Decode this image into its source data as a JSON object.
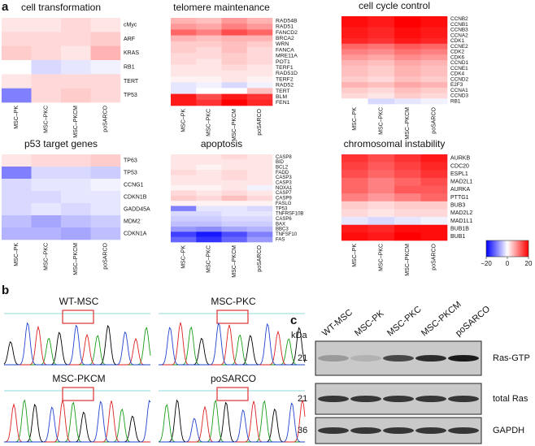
{
  "panel_a": {
    "label": "a",
    "colorbar": {
      "lim": [
        -20,
        20
      ],
      "ticks": [
        {
          "value": -20,
          "label": "−20"
        },
        0,
        20
      ]
    },
    "heatmaps": [
      {
        "title": "cell transformation",
        "columns": [
          "MSC–PK",
          "MSC–PKC",
          "MSC–PKCM",
          "poSARCO"
        ],
        "rows": [
          "cMyc",
          "ARF",
          "KRAS",
          "RB1",
          "TERT",
          "TP53"
        ],
        "values": [
          [
            2,
            2,
            3,
            2
          ],
          [
            3,
            3,
            3,
            4
          ],
          [
            4,
            3,
            2,
            6
          ],
          [
            0,
            -3,
            -2,
            -1
          ],
          [
            2,
            3,
            3,
            3
          ],
          [
            -10,
            3,
            4,
            3
          ]
        ]
      },
      {
        "title": "telomere maintenance",
        "columns": [
          "MSC–PK",
          "MSC–PKC",
          "MSC–PKCM",
          "poSARCO"
        ],
        "rows": [
          "RAD54B",
          "RAD51",
          "FANCD2",
          "BRCA2",
          "WRN",
          "FANCA",
          "MRE11A",
          "POT1",
          "TERF1",
          "RAD51D",
          "TERF2",
          "RAD52",
          "TERT",
          "BLM",
          "FEN1"
        ],
        "values": [
          [
            6,
            5,
            8,
            6
          ],
          [
            8,
            7,
            10,
            8
          ],
          [
            12,
            10,
            14,
            12
          ],
          [
            6,
            5,
            6,
            6
          ],
          [
            4,
            4,
            5,
            4
          ],
          [
            4,
            3,
            5,
            3
          ],
          [
            3,
            3,
            4,
            3
          ],
          [
            3,
            2,
            4,
            3
          ],
          [
            2,
            2,
            3,
            2
          ],
          [
            2,
            2,
            2,
            2
          ],
          [
            1,
            1,
            2,
            1
          ],
          [
            -2,
            -1,
            -3,
            -1
          ],
          [
            -2,
            0,
            0,
            5
          ],
          [
            18,
            14,
            18,
            16
          ],
          [
            18,
            16,
            20,
            17
          ]
        ]
      },
      {
        "title": "cell cycle control",
        "columns": [
          "MSC–PK",
          "MSC–PKC",
          "MSC–PKCM",
          "poSARCO"
        ],
        "rows": [
          "CCNB2",
          "CCNB1",
          "CCNB3",
          "CCNA2",
          "CDK1",
          "CCNE2",
          "CDK2",
          "CDK6",
          "CCND1",
          "CCNE1",
          "CDK4",
          "CCND2",
          "E2F3",
          "CCNA1",
          "CCND3",
          "RB1"
        ],
        "values": [
          [
            19,
            18,
            20,
            19
          ],
          [
            19,
            18,
            20,
            19
          ],
          [
            18,
            17,
            19,
            18
          ],
          [
            18,
            17,
            19,
            18
          ],
          [
            17,
            16,
            18,
            17
          ],
          [
            12,
            11,
            13,
            12
          ],
          [
            10,
            9,
            11,
            10
          ],
          [
            8,
            7,
            9,
            8
          ],
          [
            6,
            5,
            7,
            6
          ],
          [
            5,
            4,
            6,
            5
          ],
          [
            5,
            4,
            6,
            5
          ],
          [
            4,
            3,
            5,
            4
          ],
          [
            6,
            5,
            7,
            6
          ],
          [
            4,
            3,
            5,
            4
          ],
          [
            3,
            2,
            4,
            3
          ],
          [
            0,
            -3,
            -2,
            -1
          ]
        ]
      },
      {
        "title": "p53 target genes",
        "columns": [
          "MSC–PK",
          "MSC–PKC",
          "MSC–PKCM",
          "poSARCO"
        ],
        "rows": [
          "TP63",
          "TP53",
          "CCNG1",
          "CDKN1B",
          "GADD45A",
          "MDM2",
          "CDKN1A"
        ],
        "values": [
          [
            2,
            3,
            3,
            4
          ],
          [
            -10,
            -3,
            -3,
            -4
          ],
          [
            -3,
            -2,
            -2,
            -1
          ],
          [
            -3,
            -3,
            -2,
            -2
          ],
          [
            -3,
            -2,
            -3,
            -2
          ],
          [
            -5,
            -7,
            -5,
            -4
          ],
          [
            -6,
            -6,
            -7,
            -5
          ]
        ]
      },
      {
        "title": "apoptosis",
        "columns": [
          "MSC–PK",
          "MSC–PKC",
          "MSC–PKCM",
          "poSARCO"
        ],
        "rows": [
          "CASP8",
          "BID",
          "BCL2",
          "FADD",
          "CASP3",
          "CASP3",
          "NOXA1",
          "CASP7",
          "CASP9",
          "FASLG",
          "TP53",
          "TNFRSF10B",
          "CASP6",
          "BAX",
          "BBC3",
          "TNFSF10",
          "FAS"
        ],
        "values": [
          [
            2,
            2,
            3,
            2
          ],
          [
            2,
            2,
            2,
            2
          ],
          [
            2,
            1,
            2,
            2
          ],
          [
            3,
            2,
            3,
            2
          ],
          [
            2,
            2,
            3,
            2
          ],
          [
            2,
            2,
            2,
            2
          ],
          [
            1,
            1,
            2,
            -1
          ],
          [
            3,
            2,
            3,
            2
          ],
          [
            4,
            3,
            5,
            3
          ],
          [
            1,
            1,
            1,
            1
          ],
          [
            -10,
            -2,
            -2,
            -3
          ],
          [
            -3,
            -3,
            -2,
            -2
          ],
          [
            -4,
            -4,
            -3,
            -3
          ],
          [
            -5,
            -5,
            -4,
            -4
          ],
          [
            -8,
            -9,
            -7,
            -6
          ],
          [
            -15,
            -18,
            -14,
            -10
          ],
          [
            -12,
            -16,
            -12,
            -8
          ]
        ]
      },
      {
        "title": "chromosomal instability",
        "columns": [
          "MSC–PK",
          "MSC–PKC",
          "MSC–PKCM",
          "poSARCO"
        ],
        "rows": [
          "AURKB",
          "CDC20",
          "ESPL1",
          "MAD2L1",
          "AURKA",
          "PTTG1",
          "BUB3",
          "MAD2L2",
          "MAD1L1",
          "BUB1B",
          "BUB1"
        ],
        "values": [
          [
            16,
            14,
            16,
            18
          ],
          [
            15,
            13,
            15,
            17
          ],
          [
            14,
            12,
            14,
            16
          ],
          [
            12,
            10,
            12,
            14
          ],
          [
            12,
            10,
            13,
            13
          ],
          [
            10,
            8,
            10,
            12
          ],
          [
            4,
            3,
            4,
            4
          ],
          [
            3,
            2,
            3,
            3
          ],
          [
            -2,
            -3,
            -2,
            -1
          ],
          [
            18,
            17,
            19,
            19
          ],
          [
            19,
            18,
            20,
            19
          ]
        ]
      }
    ]
  },
  "panel_b": {
    "label": "b",
    "traces": [
      "WT-MSC",
      "MSC-PKC",
      "MSC-PKCM",
      "poSARCO"
    ]
  },
  "panel_c": {
    "label": "c",
    "unit": "kDa",
    "lanes": [
      "WT-MSC",
      "MSC-PK",
      "MSC-PKC",
      "MSC-PKCM",
      "poSARCO"
    ],
    "blots": [
      {
        "mw": "21",
        "name": "Ras-GTP"
      },
      {
        "mw": "21",
        "name": "total Ras"
      },
      {
        "mw": "36",
        "name": "GAPDH"
      }
    ]
  }
}
